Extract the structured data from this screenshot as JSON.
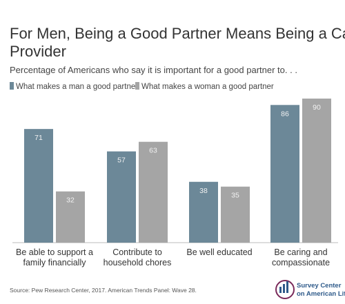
{
  "chart_data": {
    "type": "bar",
    "title": [
      "For Men, Being a Good Partner Means Being a Capable",
      "Provider"
    ],
    "subtitle": "Percentage of Americans who say it is important for a good partner to. . .",
    "categories": [
      [
        "Be able to support a",
        "family financially"
      ],
      [
        "Contribute to",
        "household chores"
      ],
      [
        "Be well educated"
      ],
      [
        "Be caring and",
        "compassionate"
      ]
    ],
    "series": [
      {
        "name": "What makes a man a good partner",
        "color": "#6c8898",
        "values": [
          71,
          57,
          38,
          86
        ]
      },
      {
        "name": "What makes a woman a good partner",
        "color": "#a5a5a5",
        "values": [
          32,
          63,
          35,
          90
        ]
      }
    ],
    "source": "Source: Pew Research Center, 2017. American Trends Panel: Wave 28.",
    "logo": [
      "Survey Center",
      "on American Life"
    ]
  }
}
